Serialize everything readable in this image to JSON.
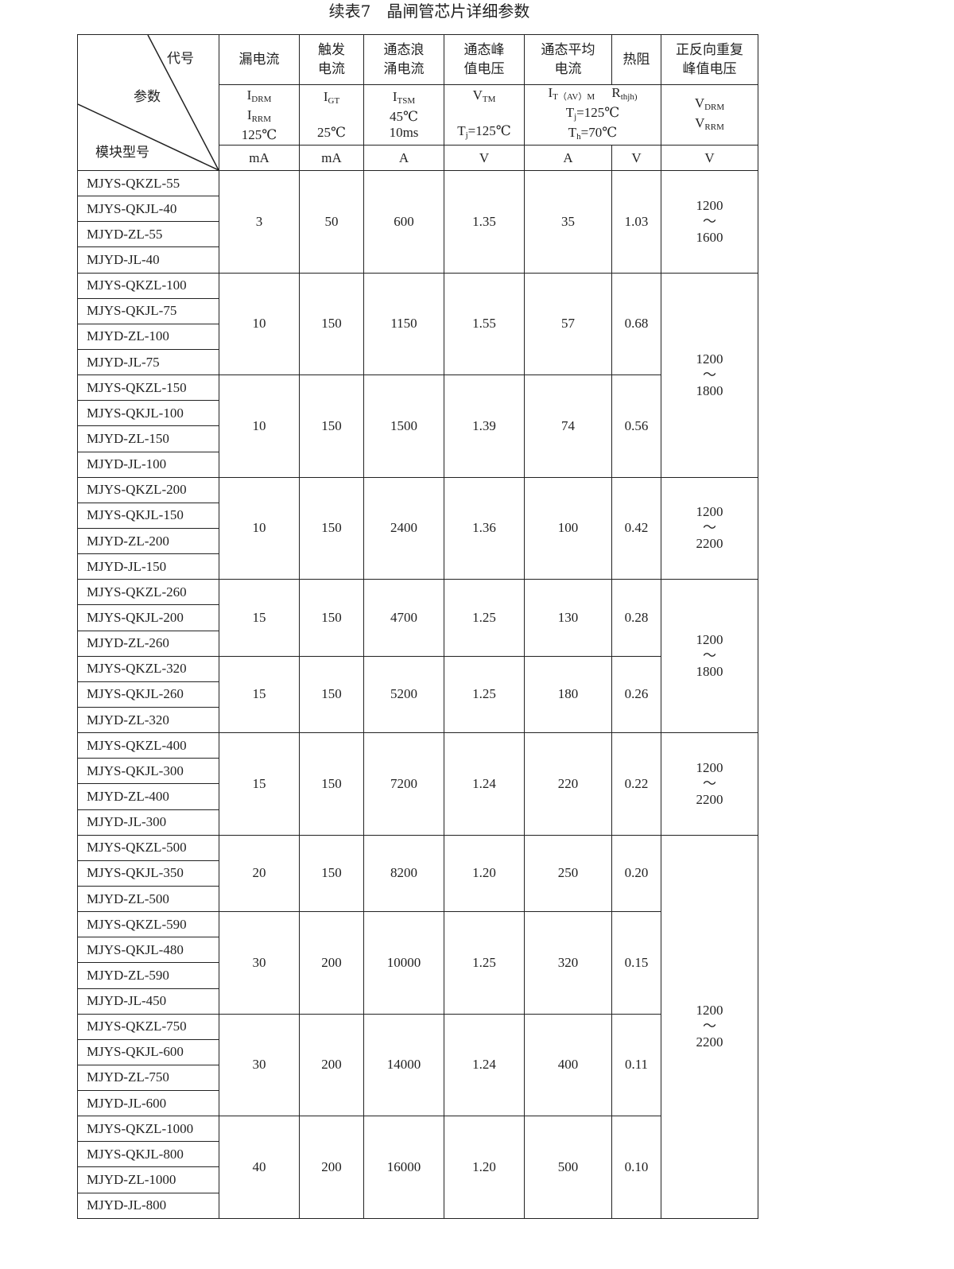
{
  "title": "续表7　晶闸管芯片详细参数",
  "corner": {
    "top": "代号",
    "middle": "参数",
    "bottom": "模块型号"
  },
  "headers": [
    "漏电流",
    "触发\n电流",
    "通态浪\n涌电流",
    "通态峰\n值电压",
    "通态平均\n电流",
    "热阻",
    "正反向重复\n峰值电压"
  ],
  "symbols": {
    "leak": {
      "l1": "I",
      "s1": "DRM",
      "l2": "I",
      "s2": "RRM",
      "l3": "125℃"
    },
    "gate": {
      "l1": "I",
      "s1": "GT",
      "l3": "25℃"
    },
    "surge": {
      "l1": "I",
      "s1": "TSM",
      "l2": "45℃",
      "l3": "10ms"
    },
    "vtm": {
      "l1": "V",
      "s1": "TM",
      "l3pre": "T",
      "l3sub": "j",
      "l3post": "=125℃"
    },
    "avg": {
      "a": "I",
      "asub": "T（AV）M",
      "b": "R",
      "bsub": "thjh)",
      "l2pre": "T",
      "l2sub": "j",
      "l2post": "=125℃",
      "l3pre": "T",
      "l3sub": "h",
      "l3post": "=70℃"
    },
    "vrrm": {
      "l1": "V",
      "s1": "DRM",
      "l2": "V",
      "s2": "RRM"
    }
  },
  "units": [
    "mA",
    "mA",
    "A",
    "V",
    "A",
    "V",
    "V"
  ],
  "groups": [
    {
      "models": [
        "MJYS-QKZL-55",
        "MJYS-QKJL-40",
        "MJYD-ZL-55",
        "MJYD-JL-40"
      ],
      "values": [
        "3",
        "50",
        "600",
        "1.35",
        "35",
        "1.03"
      ]
    },
    {
      "models": [
        "MJYS-QKZL-100",
        "MJYS-QKJL-75",
        "MJYD-ZL-100",
        "MJYD-JL-75"
      ],
      "values": [
        "10",
        "150",
        "1150",
        "1.55",
        "57",
        "0.68"
      ]
    },
    {
      "models": [
        "MJYS-QKZL-150",
        "MJYS-QKJL-100",
        "MJYD-ZL-150",
        "MJYD-JL-100"
      ],
      "values": [
        "10",
        "150",
        "1500",
        "1.39",
        "74",
        "0.56"
      ]
    },
    {
      "models": [
        "MJYS-QKZL-200",
        "MJYS-QKJL-150",
        "MJYD-ZL-200",
        "MJYD-JL-150"
      ],
      "values": [
        "10",
        "150",
        "2400",
        "1.36",
        "100",
        "0.42"
      ]
    },
    {
      "models": [
        "MJYS-QKZL-260",
        "MJYS-QKJL-200",
        "MJYD-ZL-260"
      ],
      "values": [
        "15",
        "150",
        "4700",
        "1.25",
        "130",
        "0.28"
      ]
    },
    {
      "models": [
        "MJYS-QKZL-320",
        "MJYS-QKJL-260",
        "MJYD-ZL-320"
      ],
      "values": [
        "15",
        "150",
        "5200",
        "1.25",
        "180",
        "0.26"
      ]
    },
    {
      "models": [
        "MJYS-QKZL-400",
        "MJYS-QKJL-300",
        "MJYD-ZL-400",
        "MJYD-JL-300"
      ],
      "values": [
        "15",
        "150",
        "7200",
        "1.24",
        "220",
        "0.22"
      ]
    },
    {
      "models": [
        "MJYS-QKZL-500",
        "MJYS-QKJL-350",
        "MJYD-ZL-500"
      ],
      "values": [
        "20",
        "150",
        "8200",
        "1.20",
        "250",
        "0.20"
      ]
    },
    {
      "models": [
        "MJYS-QKZL-590",
        "MJYS-QKJL-480",
        "MJYD-ZL-590",
        "MJYD-JL-450"
      ],
      "values": [
        "30",
        "200",
        "10000",
        "1.25",
        "320",
        "0.15"
      ]
    },
    {
      "models": [
        "MJYS-QKZL-750",
        "MJYS-QKJL-600",
        "MJYD-ZL-750",
        "MJYD-JL-600"
      ],
      "values": [
        "30",
        "200",
        "14000",
        "1.24",
        "400",
        "0.11"
      ]
    },
    {
      "models": [
        "MJYS-QKZL-1000",
        "MJYS-QKJL-800",
        "MJYD-ZL-1000",
        "MJYD-JL-800"
      ],
      "values": [
        "40",
        "200",
        "16000",
        "1.20",
        "500",
        "0.10"
      ]
    }
  ],
  "voltage_spans": [
    {
      "groups": 1,
      "from": "1200",
      "sep": "～",
      "to": "1600"
    },
    {
      "groups": 2,
      "from": "1200",
      "sep": "～",
      "to": "1800"
    },
    {
      "groups": 1,
      "from": "1200",
      "sep": "～",
      "to": "2200"
    },
    {
      "groups": 2,
      "from": "1200",
      "sep": "～",
      "to": "1800"
    },
    {
      "groups": 1,
      "from": "1200",
      "sep": "～",
      "to": "2200"
    },
    {
      "groups": 4,
      "from": "1200",
      "sep": "～",
      "to": "2200"
    }
  ]
}
